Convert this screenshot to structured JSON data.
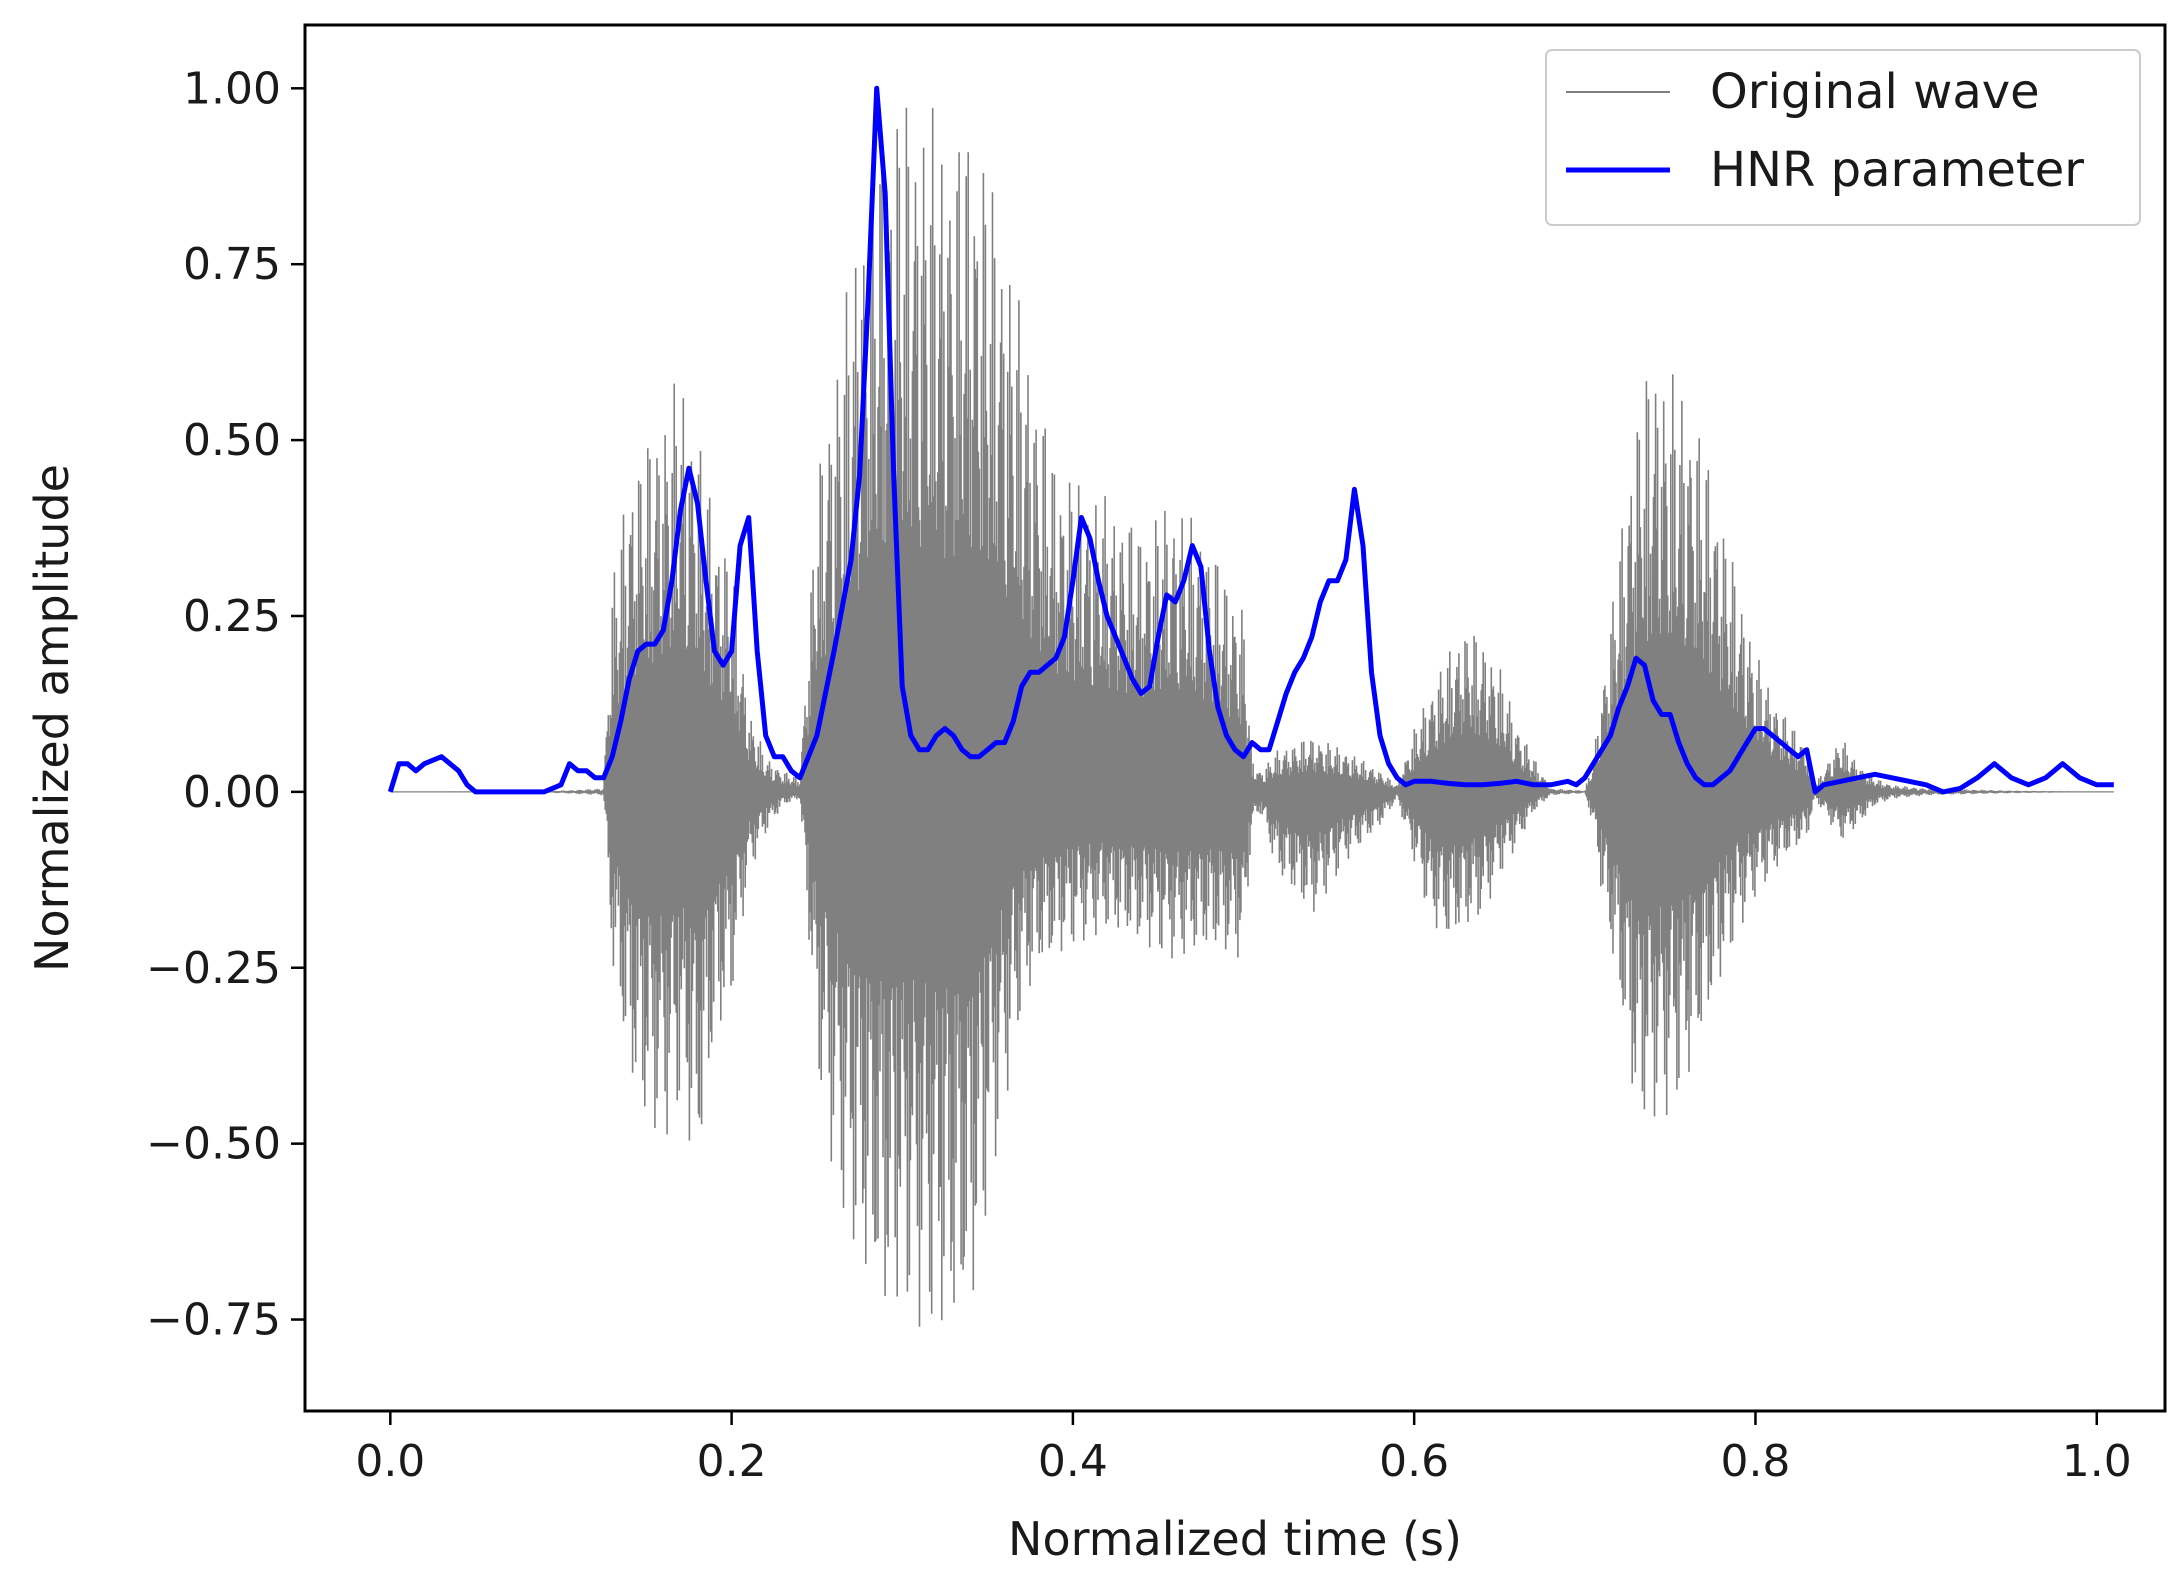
{
  "chart_data": {
    "type": "line",
    "xlabel": "Normalized time (s)",
    "ylabel": "Normalized amplitude",
    "xlim": [
      -0.05,
      1.04
    ],
    "ylim": [
      -0.88,
      1.09
    ],
    "x_ticks": [
      0.0,
      0.2,
      0.4,
      0.6,
      0.8,
      1.0
    ],
    "x_tick_labels": [
      "0.0",
      "0.2",
      "0.4",
      "0.6",
      "0.8",
      "1.0"
    ],
    "y_ticks": [
      1.0,
      0.75,
      0.5,
      0.25,
      0.0,
      -0.25,
      -0.5,
      -0.75
    ],
    "y_tick_labels": [
      "1.00",
      "0.75",
      "0.50",
      "0.25",
      "0.00",
      "−0.25",
      "−0.50",
      "−0.75"
    ],
    "grid": false,
    "legend_position": "top-right",
    "series": [
      {
        "name": "Original wave",
        "color": "#808080",
        "kind": "waveform-envelope",
        "x": [
          0.0,
          0.1,
          0.125,
          0.13,
          0.14,
          0.15,
          0.16,
          0.17,
          0.18,
          0.19,
          0.2,
          0.21,
          0.22,
          0.23,
          0.24,
          0.25,
          0.26,
          0.27,
          0.28,
          0.29,
          0.3,
          0.31,
          0.32,
          0.33,
          0.34,
          0.35,
          0.36,
          0.37,
          0.38,
          0.39,
          0.4,
          0.42,
          0.44,
          0.46,
          0.48,
          0.5,
          0.505,
          0.51,
          0.52,
          0.54,
          0.56,
          0.58,
          0.59,
          0.6,
          0.61,
          0.62,
          0.63,
          0.64,
          0.65,
          0.66,
          0.67,
          0.68,
          0.7,
          0.705,
          0.71,
          0.72,
          0.73,
          0.74,
          0.75,
          0.76,
          0.77,
          0.78,
          0.79,
          0.8,
          0.81,
          0.82,
          0.83,
          0.835,
          0.85,
          0.86,
          0.87,
          0.88,
          0.9,
          0.95,
          1.01
        ],
        "upper": [
          0.0,
          0.002,
          0.005,
          0.3,
          0.46,
          0.5,
          0.55,
          0.6,
          0.52,
          0.4,
          0.33,
          0.12,
          0.05,
          0.03,
          0.02,
          0.45,
          0.6,
          0.75,
          0.9,
          0.98,
          1.0,
          0.98,
          0.97,
          0.92,
          0.98,
          0.9,
          0.8,
          0.68,
          0.57,
          0.48,
          0.45,
          0.42,
          0.38,
          0.42,
          0.36,
          0.26,
          0.05,
          0.03,
          0.06,
          0.08,
          0.06,
          0.03,
          0.01,
          0.09,
          0.15,
          0.2,
          0.24,
          0.22,
          0.18,
          0.1,
          0.05,
          0.005,
          0.002,
          0.05,
          0.15,
          0.35,
          0.55,
          0.63,
          0.6,
          0.57,
          0.5,
          0.4,
          0.3,
          0.2,
          0.14,
          0.1,
          0.07,
          0.01,
          0.08,
          0.04,
          0.02,
          0.01,
          0.005,
          0.002,
          0.0
        ],
        "lower": [
          0.0,
          -0.002,
          -0.005,
          -0.25,
          -0.42,
          -0.48,
          -0.5,
          -0.45,
          -0.56,
          -0.37,
          -0.3,
          -0.12,
          -0.06,
          -0.02,
          -0.01,
          -0.4,
          -0.55,
          -0.65,
          -0.72,
          -0.77,
          -0.73,
          -0.76,
          -0.78,
          -0.79,
          -0.77,
          -0.6,
          -0.45,
          -0.32,
          -0.26,
          -0.24,
          -0.22,
          -0.2,
          -0.22,
          -0.24,
          -0.23,
          -0.24,
          -0.05,
          -0.03,
          -0.12,
          -0.18,
          -0.1,
          -0.05,
          -0.01,
          -0.1,
          -0.19,
          -0.22,
          -0.2,
          -0.18,
          -0.12,
          -0.08,
          -0.03,
          -0.005,
          -0.002,
          -0.05,
          -0.15,
          -0.3,
          -0.48,
          -0.47,
          -0.46,
          -0.42,
          -0.35,
          -0.27,
          -0.2,
          -0.15,
          -0.12,
          -0.09,
          -0.07,
          -0.01,
          -0.07,
          -0.05,
          -0.02,
          -0.01,
          -0.005,
          -0.002,
          0.0
        ]
      },
      {
        "name": "HNR parameter",
        "color": "#0000ff",
        "x": [
          0.0,
          0.005,
          0.01,
          0.015,
          0.02,
          0.03,
          0.04,
          0.045,
          0.05,
          0.07,
          0.09,
          0.1,
          0.105,
          0.11,
          0.115,
          0.12,
          0.125,
          0.13,
          0.135,
          0.14,
          0.145,
          0.15,
          0.155,
          0.16,
          0.165,
          0.17,
          0.175,
          0.18,
          0.185,
          0.19,
          0.195,
          0.2,
          0.205,
          0.21,
          0.215,
          0.22,
          0.225,
          0.23,
          0.235,
          0.24,
          0.245,
          0.25,
          0.26,
          0.27,
          0.275,
          0.28,
          0.285,
          0.29,
          0.295,
          0.3,
          0.305,
          0.31,
          0.315,
          0.32,
          0.325,
          0.33,
          0.335,
          0.34,
          0.345,
          0.35,
          0.355,
          0.36,
          0.365,
          0.37,
          0.375,
          0.38,
          0.385,
          0.39,
          0.395,
          0.4,
          0.405,
          0.41,
          0.415,
          0.42,
          0.425,
          0.43,
          0.435,
          0.44,
          0.445,
          0.45,
          0.455,
          0.46,
          0.465,
          0.47,
          0.475,
          0.48,
          0.485,
          0.49,
          0.495,
          0.5,
          0.505,
          0.51,
          0.515,
          0.52,
          0.525,
          0.53,
          0.535,
          0.54,
          0.545,
          0.55,
          0.555,
          0.56,
          0.565,
          0.57,
          0.575,
          0.58,
          0.585,
          0.59,
          0.595,
          0.6,
          0.61,
          0.62,
          0.63,
          0.64,
          0.65,
          0.66,
          0.67,
          0.68,
          0.69,
          0.695,
          0.7,
          0.705,
          0.71,
          0.715,
          0.72,
          0.725,
          0.73,
          0.735,
          0.74,
          0.745,
          0.75,
          0.755,
          0.76,
          0.765,
          0.77,
          0.775,
          0.78,
          0.785,
          0.79,
          0.795,
          0.8,
          0.805,
          0.81,
          0.815,
          0.82,
          0.825,
          0.83,
          0.835,
          0.84,
          0.85,
          0.86,
          0.87,
          0.88,
          0.89,
          0.9,
          0.91,
          0.92,
          0.93,
          0.935,
          0.94,
          0.95,
          0.96,
          0.97,
          0.975,
          0.98,
          0.99,
          1.0,
          1.01
        ],
        "y": [
          0.0,
          0.04,
          0.04,
          0.03,
          0.04,
          0.05,
          0.03,
          0.01,
          0.0,
          0.0,
          0.0,
          0.01,
          0.04,
          0.03,
          0.03,
          0.02,
          0.02,
          0.05,
          0.1,
          0.16,
          0.2,
          0.21,
          0.21,
          0.23,
          0.3,
          0.4,
          0.46,
          0.41,
          0.3,
          0.2,
          0.18,
          0.2,
          0.35,
          0.39,
          0.2,
          0.08,
          0.05,
          0.05,
          0.03,
          0.02,
          0.05,
          0.08,
          0.2,
          0.33,
          0.45,
          0.7,
          1.0,
          0.85,
          0.45,
          0.15,
          0.08,
          0.06,
          0.06,
          0.08,
          0.09,
          0.08,
          0.06,
          0.05,
          0.05,
          0.06,
          0.07,
          0.07,
          0.1,
          0.15,
          0.17,
          0.17,
          0.18,
          0.19,
          0.22,
          0.3,
          0.39,
          0.36,
          0.3,
          0.25,
          0.22,
          0.19,
          0.16,
          0.14,
          0.15,
          0.22,
          0.28,
          0.27,
          0.3,
          0.35,
          0.32,
          0.2,
          0.12,
          0.08,
          0.06,
          0.05,
          0.07,
          0.06,
          0.06,
          0.1,
          0.14,
          0.17,
          0.19,
          0.22,
          0.27,
          0.3,
          0.3,
          0.33,
          0.43,
          0.35,
          0.17,
          0.08,
          0.04,
          0.02,
          0.01,
          0.015,
          0.015,
          0.012,
          0.01,
          0.01,
          0.012,
          0.015,
          0.01,
          0.01,
          0.015,
          0.01,
          0.02,
          0.04,
          0.06,
          0.08,
          0.12,
          0.15,
          0.19,
          0.18,
          0.13,
          0.11,
          0.11,
          0.07,
          0.04,
          0.02,
          0.01,
          0.01,
          0.02,
          0.03,
          0.05,
          0.07,
          0.09,
          0.09,
          0.08,
          0.07,
          0.06,
          0.05,
          0.06,
          0.0,
          0.01,
          0.015,
          0.02,
          0.025,
          0.02,
          0.015,
          0.01,
          0.0,
          0.005,
          0.02,
          0.03,
          0.04,
          0.02,
          0.01,
          0.02,
          0.03,
          0.04,
          0.02,
          0.01,
          0.01
        ]
      }
    ]
  }
}
